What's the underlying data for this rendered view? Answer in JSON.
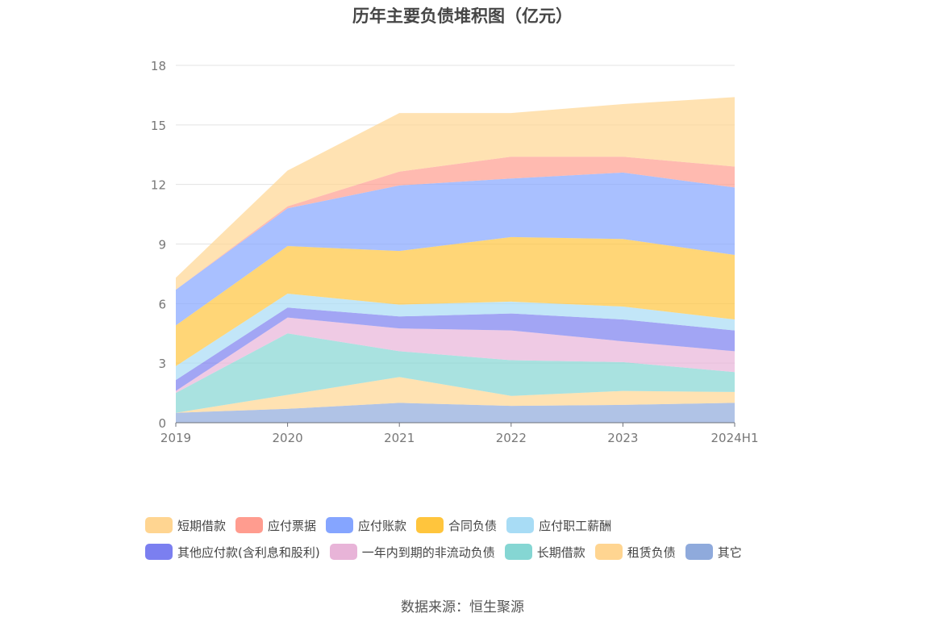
{
  "chart_data": {
    "type": "area",
    "stacked": true,
    "title": "历年主要负债堆积图（亿元）",
    "categories": [
      "2019",
      "2020",
      "2021",
      "2022",
      "2023",
      "2024H1"
    ],
    "ylim": [
      0,
      18
    ],
    "yticks": [
      0,
      3,
      6,
      9,
      12,
      15,
      18
    ],
    "grid": true,
    "legend_position": "bottom",
    "series": [
      {
        "name": "其它",
        "color": "#8FAADC",
        "values": [
          0.5,
          0.7,
          1.0,
          0.85,
          0.9,
          1.0
        ]
      },
      {
        "name": "租赁负债",
        "color": "#FFD591",
        "values": [
          0.0,
          0.7,
          1.3,
          0.5,
          0.7,
          0.55
        ]
      },
      {
        "name": "长期借款",
        "color": "#85D6D3",
        "values": [
          1.0,
          3.1,
          1.3,
          1.8,
          1.45,
          1.0
        ]
      },
      {
        "name": "一年内到期的非流动负债",
        "color": "#E8B4D8",
        "values": [
          0.1,
          0.8,
          1.15,
          1.5,
          1.05,
          1.05
        ]
      },
      {
        "name": "其他应付款(含利息和股利)",
        "color": "#7B7FF0",
        "values": [
          0.55,
          0.5,
          0.6,
          0.85,
          1.1,
          1.05
        ]
      },
      {
        "name": "应付职工薪酬",
        "color": "#A8DCF5",
        "values": [
          0.7,
          0.7,
          0.6,
          0.6,
          0.65,
          0.55
        ]
      },
      {
        "name": "合同负债",
        "color": "#FFC53D",
        "values": [
          2.05,
          2.4,
          2.7,
          3.25,
          3.4,
          3.25
        ]
      },
      {
        "name": "应付账款",
        "color": "#85A5FF",
        "values": [
          1.8,
          1.9,
          3.3,
          2.95,
          3.35,
          3.4
        ]
      },
      {
        "name": "应付票据",
        "color": "#FF9C8F",
        "values": [
          0.0,
          0.1,
          0.7,
          1.1,
          0.8,
          1.05
        ]
      },
      {
        "name": "短期借款",
        "color": "#FFD591",
        "values": [
          0.6,
          1.8,
          2.95,
          2.2,
          2.65,
          3.5
        ]
      }
    ],
    "legend_order": [
      "短期借款",
      "应付票据",
      "应付账款",
      "合同负债",
      "应付职工薪酬",
      "其他应付款(含利息和股利)",
      "一年内到期的非流动负债",
      "长期借款",
      "租赁负债",
      "其它"
    ]
  },
  "source_text": "数据来源：恒生聚源"
}
